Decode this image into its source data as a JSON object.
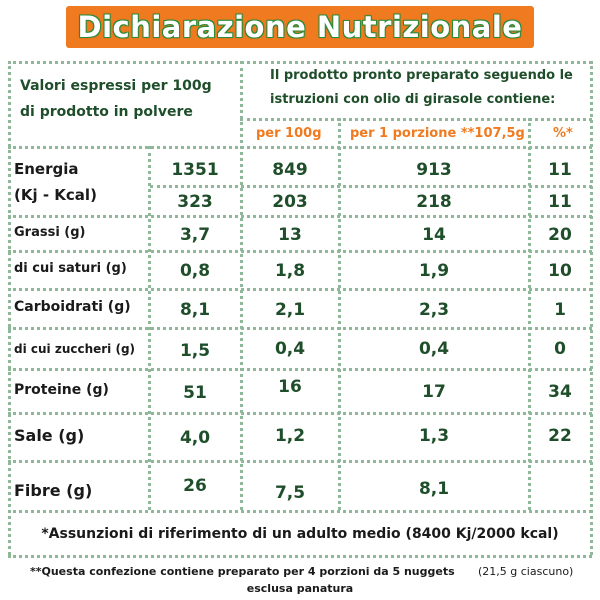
{
  "title": "Dichiarazione Nutrizionale",
  "header": {
    "left": [
      "Valori espressi per 100g",
      "di prodotto in polvere"
    ],
    "right": [
      "Il prodotto pronto preparato seguendo le",
      "istruzioni con olio di girasole contiene:"
    ],
    "col_100g": "per 100g",
    "col_portion": "per 1 porzione **107,5g",
    "col_percent": "%*"
  },
  "rows": [
    {
      "label": "Energia",
      "label2": "(Kj - Kcal)",
      "powder": "1351",
      "per100": "849",
      "portion": "913",
      "pct": "11"
    },
    {
      "label": "",
      "powder": "323",
      "per100": "203",
      "portion": "218",
      "pct": "11"
    },
    {
      "label": "Grassi (g)",
      "powder": "3,7",
      "per100": "13",
      "portion": "14",
      "pct": "20"
    },
    {
      "label": "di cui saturi (g)",
      "powder": "0,8",
      "per100": "1,8",
      "portion": "1,9",
      "pct": "10"
    },
    {
      "label": "Carboidrati (g)",
      "powder": "8,1",
      "per100": "2,1",
      "portion": "2,3",
      "pct": "1"
    },
    {
      "label": "di cui zuccheri (g)",
      "powder": "1,5",
      "per100": "0,4",
      "portion": "0,4",
      "pct": "0"
    },
    {
      "label": "Proteine (g)",
      "powder": "51",
      "per100": "16",
      "portion": "17",
      "pct": "34"
    },
    {
      "label": "Sale (g)",
      "powder": "4,0",
      "per100": "1,2",
      "portion": "1,3",
      "pct": "22"
    },
    {
      "label": "Fibre (g)",
      "powder": "26",
      "per100": "7,5",
      "portion": "8,1",
      "pct": ""
    }
  ],
  "footnote1": "*Assunzioni di riferimento di un adulto medio (8400 Kj/2000 kcal)",
  "footnote2_a": "**Questa confezione contiene preparato per 4 porzioni da 5 nuggets",
  "footnote2_b": "(21,5 g ciascuno)",
  "footnote2_c": "esclusa panatura"
}
